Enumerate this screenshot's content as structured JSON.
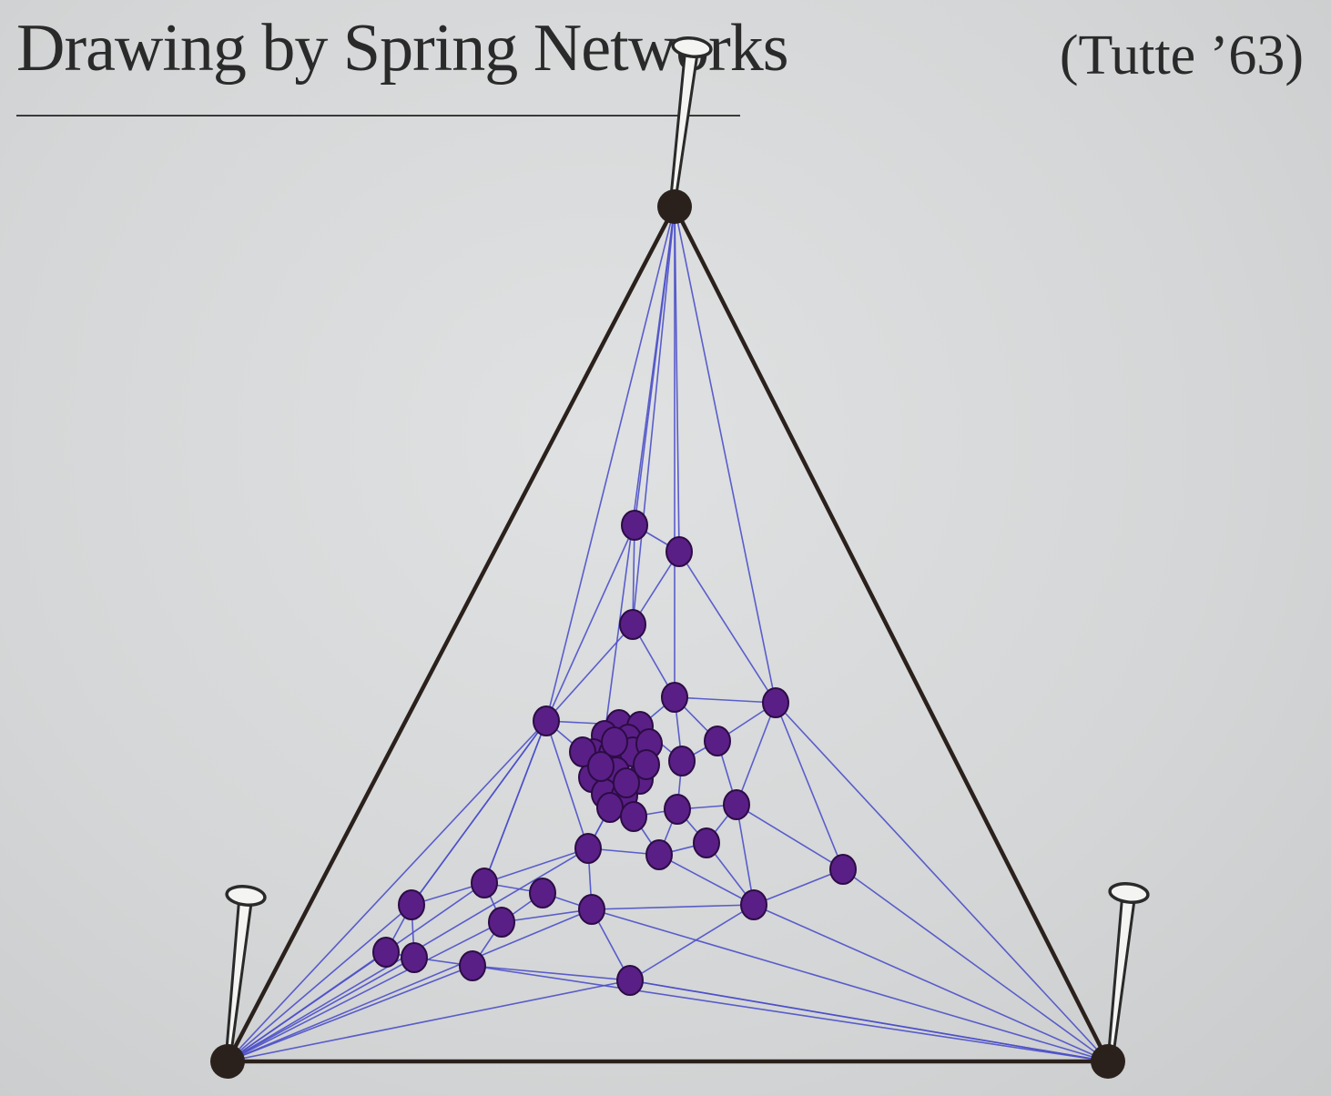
{
  "slide": {
    "title": "Drawing by Spring Networks",
    "citation": "(Tutte ’63)"
  },
  "colors": {
    "background": "#d6d8d9",
    "text": "#2a2a2a",
    "outer_edge": "#2b211c",
    "spring_edge": "#4b4fc8",
    "vertex_fill": "#5a1f86",
    "vertex_stroke": "#2c0c45",
    "pinned_vertex": "#2b211c"
  },
  "icons": [
    "nail-icon"
  ],
  "graph": {
    "type": "planar-spring-embedding",
    "pinned_vertex_count": 3,
    "free_vertex_count": 44
  }
}
